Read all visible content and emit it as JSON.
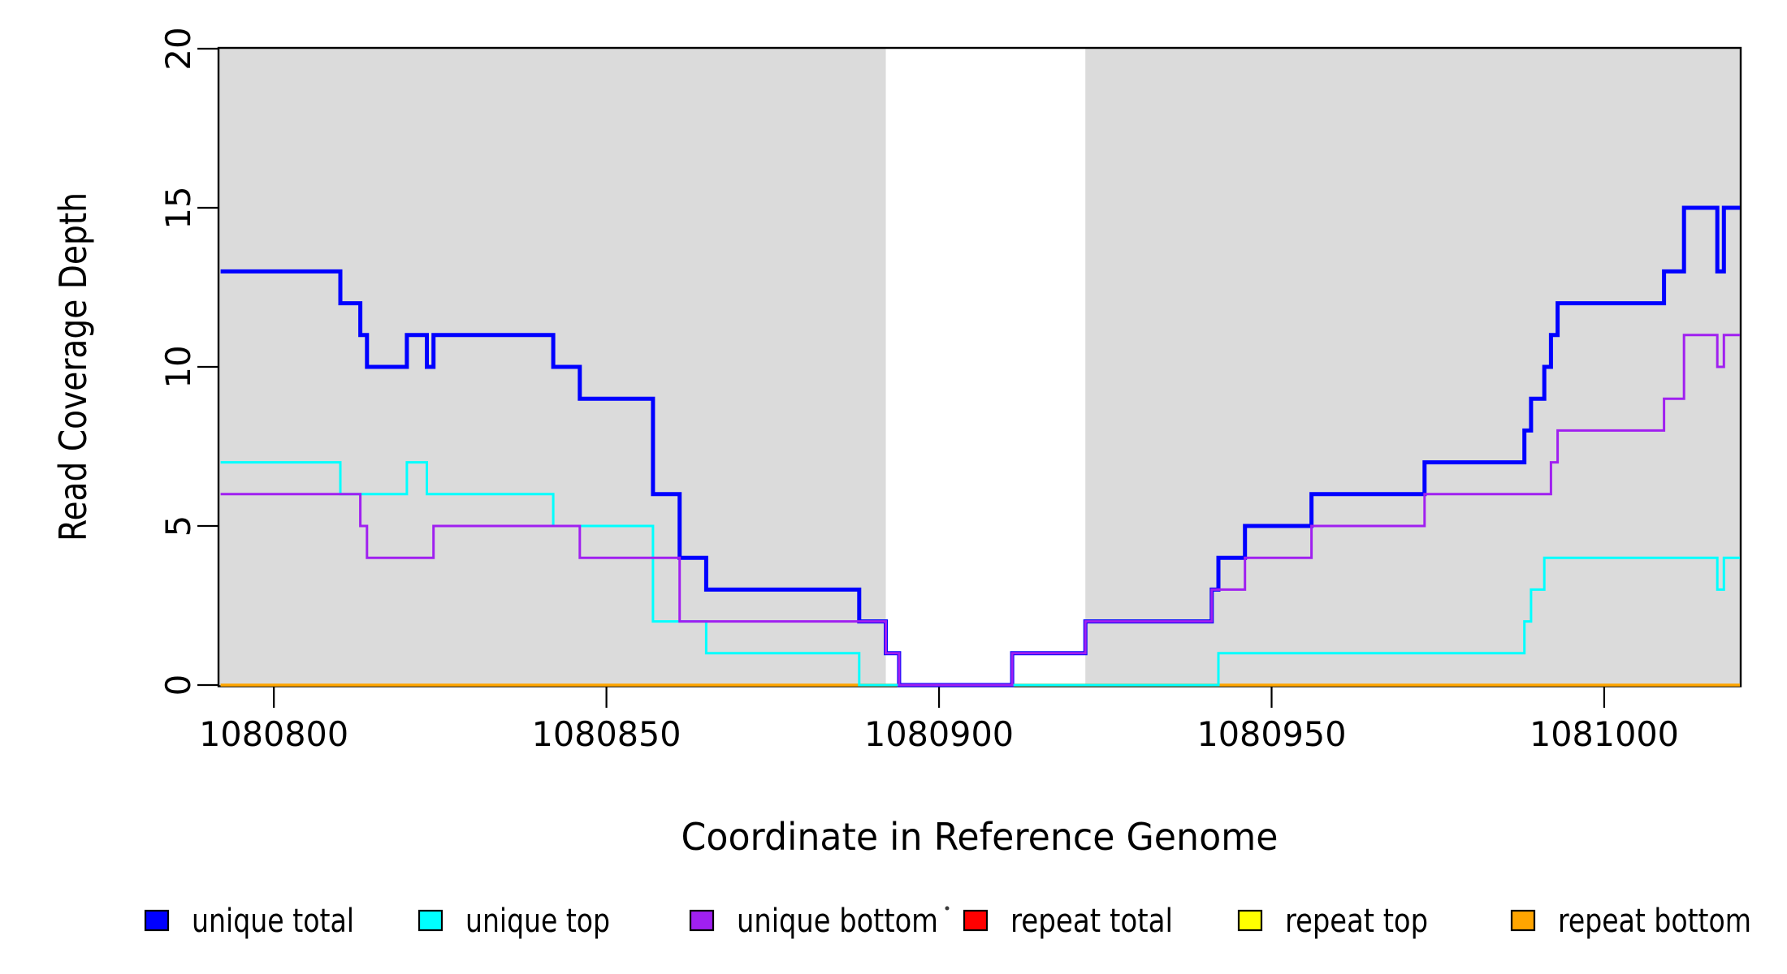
{
  "figure": {
    "background": "#FFFFFF",
    "region_highlight_color": "#DBDBDB"
  },
  "chart_data": {
    "type": "line",
    "subtype": "step",
    "title": "",
    "xlabel": "Coordinate in Reference Genome",
    "ylabel": "Read Coverage Depth",
    "xlim": [
      1080791.8,
      1081020.4
    ],
    "ylim": [
      0,
      20
    ],
    "grid": false,
    "x_ticks": {
      "values": [
        1080800,
        1080850,
        1080900,
        1080950,
        1081000
      ],
      "labels": [
        "1080800",
        "1080850",
        "1080900",
        "1080950",
        "1081000"
      ]
    },
    "y_ticks": {
      "values": [
        0,
        5,
        10,
        15,
        20
      ],
      "labels": [
        "0",
        "5",
        "10",
        "15",
        "20"
      ]
    },
    "shaded_regions": [
      {
        "name": "unique-region-left",
        "x0": 1080791.8,
        "x1": 1080892,
        "color": "#DBDBDB"
      },
      {
        "name": "unique-region-right",
        "x0": 1080922,
        "x1": 1081020.4,
        "color": "#DBDBDB"
      }
    ],
    "series": [
      {
        "name": "repeat total",
        "color": "#FF0000",
        "line_width": 3,
        "steps": [
          [
            1080792,
            0
          ]
        ]
      },
      {
        "name": "repeat top",
        "color": "#FFFF00",
        "line_width": 3,
        "steps": [
          [
            1080792,
            0
          ]
        ]
      },
      {
        "name": "repeat bottom",
        "color": "#FFA500",
        "line_width": 3.5,
        "steps": [
          [
            1080792,
            0
          ]
        ]
      },
      {
        "name": "unique total",
        "color": "#0000FF",
        "line_width": 5,
        "steps": [
          [
            1080792,
            13
          ],
          [
            1080810,
            12
          ],
          [
            1080813,
            11
          ],
          [
            1080814,
            10
          ],
          [
            1080820,
            11
          ],
          [
            1080823,
            10
          ],
          [
            1080824,
            11
          ],
          [
            1080842,
            10
          ],
          [
            1080846,
            9
          ],
          [
            1080857,
            6
          ],
          [
            1080861,
            4
          ],
          [
            1080865,
            3
          ],
          [
            1080888,
            2
          ],
          [
            1080892,
            1
          ],
          [
            1080894,
            0
          ],
          [
            1080911,
            1
          ],
          [
            1080922,
            2
          ],
          [
            1080941,
            3
          ],
          [
            1080942,
            4
          ],
          [
            1080946,
            5
          ],
          [
            1080956,
            6
          ],
          [
            1080973,
            7
          ],
          [
            1080988,
            8
          ],
          [
            1080989,
            9
          ],
          [
            1080991,
            10
          ],
          [
            1080992,
            11
          ],
          [
            1080993,
            12
          ],
          [
            1081009,
            13
          ],
          [
            1081012,
            15
          ],
          [
            1081017,
            13
          ],
          [
            1081018,
            15
          ]
        ]
      },
      {
        "name": "unique top",
        "color": "#00FFFF",
        "line_width": 3,
        "steps": [
          [
            1080792,
            7
          ],
          [
            1080810,
            6
          ],
          [
            1080820,
            7
          ],
          [
            1080823,
            6
          ],
          [
            1080842,
            5
          ],
          [
            1080857,
            2
          ],
          [
            1080865,
            1
          ],
          [
            1080888,
            0
          ],
          [
            1080942,
            1
          ],
          [
            1080988,
            2
          ],
          [
            1080989,
            3
          ],
          [
            1080991,
            4
          ],
          [
            1081017,
            3
          ],
          [
            1081018,
            4
          ]
        ]
      },
      {
        "name": "unique bottom",
        "color": "#A020F0",
        "line_width": 3,
        "steps": [
          [
            1080792,
            6
          ],
          [
            1080813,
            5
          ],
          [
            1080814,
            4
          ],
          [
            1080824,
            5
          ],
          [
            1080846,
            4
          ],
          [
            1080861,
            2
          ],
          [
            1080892,
            1
          ],
          [
            1080894,
            0
          ],
          [
            1080911,
            1
          ],
          [
            1080922,
            2
          ],
          [
            1080941,
            3
          ],
          [
            1080946,
            4
          ],
          [
            1080956,
            5
          ],
          [
            1080973,
            6
          ],
          [
            1080992,
            7
          ],
          [
            1080993,
            8
          ],
          [
            1081009,
            9
          ],
          [
            1081012,
            11
          ],
          [
            1081017,
            10
          ],
          [
            1081018,
            11
          ]
        ]
      }
    ],
    "legend": {
      "position": "bottom",
      "items": [
        {
          "label": "unique total",
          "color": "#0000FF"
        },
        {
          "label": "unique top",
          "color": "#00FFFF"
        },
        {
          "label": "unique bottom",
          "color": "#A020F0"
        },
        {
          "label": "repeat total",
          "color": "#FF0000"
        },
        {
          "label": "repeat top",
          "color": "#FFFF00"
        },
        {
          "label": "repeat bottom",
          "color": "#FFA500"
        }
      ]
    },
    "stray_mark": {
      "x": 1166,
      "y": 1119,
      "color": "#3a3a3a"
    }
  }
}
